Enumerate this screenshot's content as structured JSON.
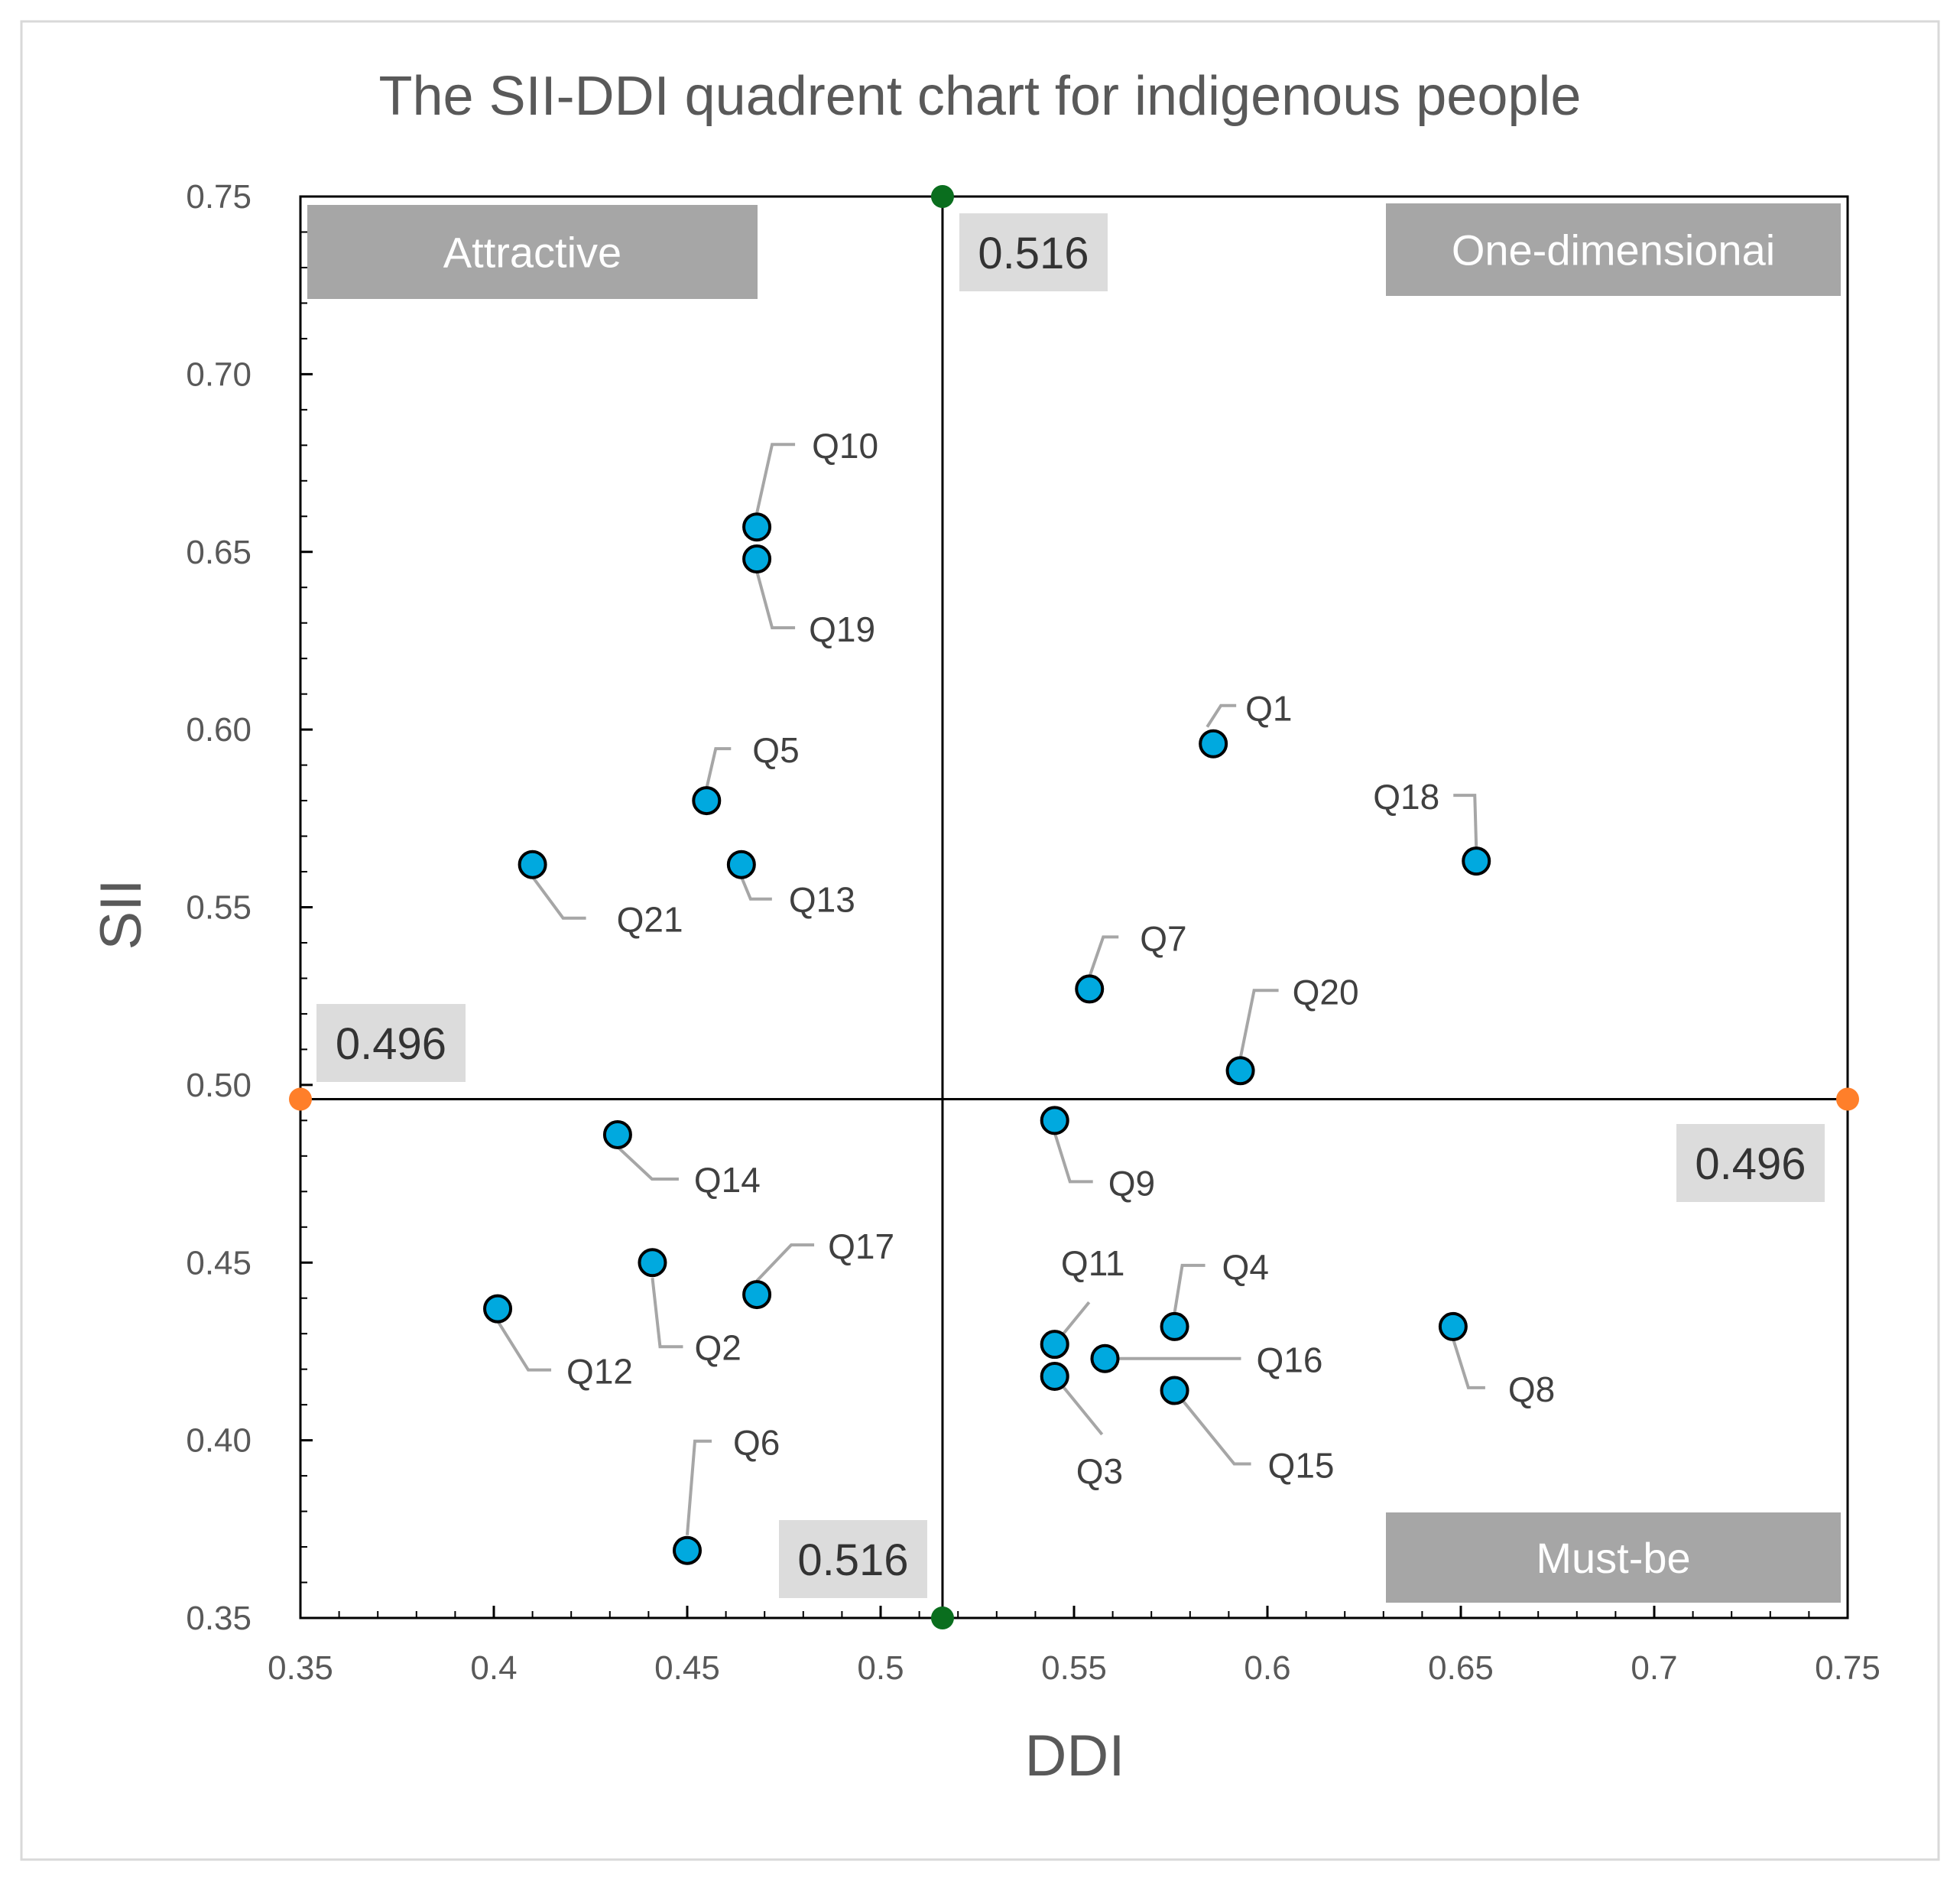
{
  "chart_data": {
    "type": "scatter",
    "title": "The SII-DDI quadrent chart for indigenous people",
    "xlabel": "DDI",
    "ylabel": "SII",
    "xlim": [
      0.35,
      0.75
    ],
    "ylim": [
      0.35,
      0.75
    ],
    "x_ticks": [
      "0.35",
      "0.4",
      "0.45",
      "0.5",
      "0.55",
      "0.6",
      "0.65",
      "0.7",
      "0.75"
    ],
    "y_ticks": [
      "0.35",
      "0.40",
      "0.45",
      "0.50",
      "0.55",
      "0.60",
      "0.65",
      "0.70",
      "0.75"
    ],
    "thresholds": {
      "ddi": 0.516,
      "sii": 0.496,
      "ddi_label": "0.516",
      "sii_label": "0.496"
    },
    "quadrants": {
      "top_left": "Attractive",
      "top_right": "One-dimensionai",
      "bottom_right": "Must-be"
    },
    "points": [
      {
        "label": "Q1",
        "x": 0.586,
        "y": 0.596
      },
      {
        "label": "Q2",
        "x": 0.441,
        "y": 0.45
      },
      {
        "label": "Q3",
        "x": 0.545,
        "y": 0.418
      },
      {
        "label": "Q4",
        "x": 0.576,
        "y": 0.432
      },
      {
        "label": "Q5",
        "x": 0.455,
        "y": 0.58
      },
      {
        "label": "Q6",
        "x": 0.45,
        "y": 0.369
      },
      {
        "label": "Q7",
        "x": 0.554,
        "y": 0.527
      },
      {
        "label": "Q8",
        "x": 0.648,
        "y": 0.432
      },
      {
        "label": "Q9",
        "x": 0.545,
        "y": 0.49
      },
      {
        "label": "Q10",
        "x": 0.468,
        "y": 0.657
      },
      {
        "label": "Q11",
        "x": 0.545,
        "y": 0.427
      },
      {
        "label": "Q12",
        "x": 0.401,
        "y": 0.437
      },
      {
        "label": "Q13",
        "x": 0.464,
        "y": 0.562
      },
      {
        "label": "Q14",
        "x": 0.432,
        "y": 0.486
      },
      {
        "label": "Q15",
        "x": 0.576,
        "y": 0.414
      },
      {
        "label": "Q16",
        "x": 0.558,
        "y": 0.423
      },
      {
        "label": "Q17",
        "x": 0.468,
        "y": 0.441
      },
      {
        "label": "Q18",
        "x": 0.654,
        "y": 0.563
      },
      {
        "label": "Q19",
        "x": 0.468,
        "y": 0.648
      },
      {
        "label": "Q20",
        "x": 0.593,
        "y": 0.504
      },
      {
        "label": "Q21",
        "x": 0.41,
        "y": 0.562
      }
    ],
    "colors": {
      "point_fill": "#00A9DF",
      "point_stroke": "#000000",
      "ddi_marker": "#0A6E1E",
      "sii_marker": "#FF7F2A",
      "leader": "#A6A6A6",
      "quad_box": "#A6A6A6",
      "threshold_box": "#DCDCDC"
    }
  }
}
